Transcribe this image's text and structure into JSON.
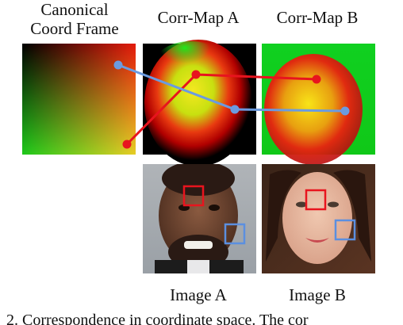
{
  "labels": {
    "canonical_line1": "Canonical",
    "canonical_line2": "Coord Frame",
    "corr_map_a": "Corr-Map A",
    "corr_map_b": "Corr-Map B",
    "image_a": "Image A",
    "image_b": "Image B"
  },
  "caption": "2.  Correspondence in coordinate space.  The cor",
  "colors": {
    "red_link": "#e8141e",
    "blue_link": "#6b9be0",
    "box_red": "#e8141e",
    "box_blue": "#5b8fe0"
  }
}
